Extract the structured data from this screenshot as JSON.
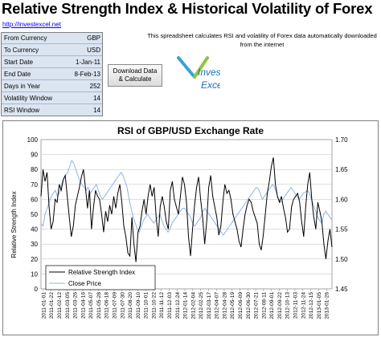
{
  "header": {
    "title": "Relative Strength Index & Historical Volatility of Forex",
    "link_text": "http://investexcel.net",
    "description": "This spreadsheet calculates RSI and volatility of Forex data automatically downloaded from the internet"
  },
  "params": [
    {
      "label": "From Currency",
      "value": "GBP"
    },
    {
      "label": "To Currency",
      "value": "USD"
    },
    {
      "label": "Start Date",
      "value": "1-Jan-11"
    },
    {
      "label": "End Date",
      "value": "8-Feb-13"
    },
    {
      "label": "Days in Year",
      "value": "252"
    },
    {
      "label": "Volatility Window",
      "value": "14"
    },
    {
      "label": "RSI Window",
      "value": "14"
    }
  ],
  "button": {
    "label_line1": "Download Data",
    "label_line2": "& Calculate"
  },
  "logo": {
    "line1": "Invest",
    "line2": "Excel"
  },
  "colors": {
    "rsi": "#000000",
    "price": "#8fb4e3",
    "panel": "#dbe5f1",
    "chart_bg": "#ffffff"
  },
  "chart_data": {
    "type": "line",
    "title": "RSI of GBP/USD Exchange Rate",
    "ylabel": "Relative Strength Index",
    "ylim": [
      0,
      100
    ],
    "yticks": [
      "0",
      "10",
      "20",
      "30",
      "40",
      "50",
      "60",
      "70",
      "80",
      "90",
      "100"
    ],
    "y2lim": [
      1.45,
      1.7
    ],
    "y2ticks": [
      "1.45",
      "1.50",
      "1.55",
      "1.60",
      "1.65",
      "1.70"
    ],
    "grid": true,
    "legend": "bottom-left",
    "xticks": [
      "2011-01-01",
      "2011-01-22",
      "2011-02-12",
      "2011-03-05",
      "2011-03-26",
      "2011-04-16",
      "2011-05-07",
      "2011-05-28",
      "2011-06-18",
      "2011-07-09",
      "2011-07-30",
      "2011-08-20",
      "2011-09-10",
      "2011-10-01",
      "2011-10-22",
      "2011-11-12",
      "2011-12-03",
      "2011-12-24",
      "2012-01-14",
      "2012-02-04",
      "2012-02-25",
      "2012-03-17",
      "2012-04-07",
      "2012-04-28",
      "2012-05-19",
      "2012-06-09",
      "2012-06-30",
      "2012-07-21",
      "2012-08-11",
      "2012-09-01",
      "2012-09-22",
      "2012-10-13",
      "2012-11-03",
      "2012-11-24",
      "2012-12-15",
      "2013-01-05",
      "2013-01-26"
    ],
    "series": [
      {
        "name": "Relative Strength Index",
        "axis": "left",
        "values": [
          62,
          80,
          72,
          78,
          55,
          40,
          45,
          60,
          58,
          70,
          66,
          73,
          76,
          62,
          48,
          35,
          42,
          56,
          62,
          68,
          75,
          80,
          68,
          54,
          66,
          40,
          55,
          66,
          62,
          60,
          50,
          38,
          52,
          45,
          56,
          50,
          62,
          54,
          64,
          70,
          58,
          42,
          35,
          24,
          22,
          48,
          30,
          18,
          38,
          42,
          52,
          60,
          50,
          62,
          70,
          62,
          68,
          48,
          35,
          55,
          62,
          55,
          45,
          40,
          66,
          72,
          60,
          55,
          50,
          62,
          75,
          70,
          58,
          35,
          22,
          40,
          56,
          68,
          75,
          60,
          48,
          30,
          45,
          68,
          76,
          62,
          55,
          48,
          36,
          42,
          58,
          70,
          64,
          66,
          60,
          50,
          45,
          40,
          32,
          28,
          40,
          50,
          56,
          60,
          58,
          52,
          48,
          44,
          30,
          26,
          36,
          50,
          64,
          72,
          82,
          88,
          70,
          62,
          58,
          62,
          54,
          48,
          38,
          40,
          55,
          60,
          62,
          64,
          58,
          45,
          35,
          55,
          70,
          78,
          60,
          48,
          40,
          58,
          52,
          45,
          30,
          20,
          32,
          40,
          28
        ]
      },
      {
        "name": "Close Price",
        "axis": "right",
        "values": [
          1.56,
          1.555,
          1.575,
          1.585,
          1.595,
          1.605,
          1.61,
          1.615,
          1.605,
          1.61,
          1.625,
          1.635,
          1.64,
          1.645,
          1.655,
          1.665,
          1.66,
          1.65,
          1.64,
          1.63,
          1.625,
          1.62,
          1.615,
          1.62,
          1.61,
          1.615,
          1.62,
          1.625,
          1.615,
          1.605,
          1.6,
          1.605,
          1.61,
          1.615,
          1.62,
          1.625,
          1.63,
          1.635,
          1.64,
          1.645,
          1.64,
          1.63,
          1.62,
          1.6,
          1.585,
          1.57,
          1.56,
          1.55,
          1.545,
          1.555,
          1.565,
          1.57,
          1.575,
          1.57,
          1.565,
          1.56,
          1.565,
          1.57,
          1.575,
          1.565,
          1.555,
          1.55,
          1.545,
          1.55,
          1.56,
          1.565,
          1.57,
          1.575,
          1.58,
          1.585,
          1.585,
          1.58,
          1.575,
          1.57,
          1.56,
          1.555,
          1.56,
          1.565,
          1.57,
          1.58,
          1.585,
          1.58,
          1.575,
          1.57,
          1.565,
          1.56,
          1.555,
          1.55,
          1.545,
          1.54,
          1.545,
          1.55,
          1.555,
          1.56,
          1.565,
          1.57,
          1.575,
          1.58,
          1.585,
          1.59,
          1.595,
          1.6,
          1.605,
          1.61,
          1.615,
          1.62,
          1.618,
          1.61,
          1.6,
          1.605,
          1.61,
          1.615,
          1.62,
          1.625,
          1.62,
          1.61,
          1.6,
          1.595,
          1.6,
          1.605,
          1.61,
          1.615,
          1.62,
          1.615,
          1.61,
          1.605,
          1.6,
          1.605,
          1.61,
          1.612,
          1.615,
          1.61,
          1.6,
          1.59,
          1.58,
          1.57,
          1.565,
          1.56,
          1.575,
          1.58,
          1.575,
          1.57,
          1.565
        ]
      }
    ]
  }
}
